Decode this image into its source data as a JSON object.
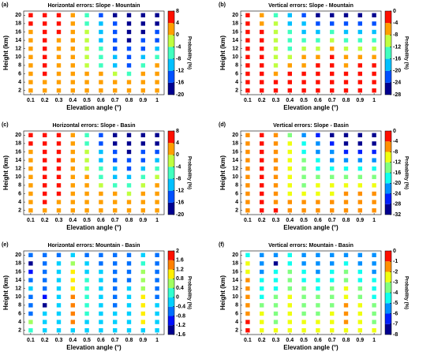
{
  "chart_data": [
    {
      "type": "heatmap-scatter",
      "panel_label": "(a)",
      "title": "Horizontal errors: Slope - Mountain",
      "xlabel": "Elevation angle (°)",
      "ylabel": "Height (km)",
      "clabel": "Probability (%)",
      "x": [
        0.1,
        0.2,
        0.3,
        0.4,
        0.5,
        0.6,
        0.7,
        0.8,
        0.9,
        1
      ],
      "y": [
        2,
        4,
        6,
        8,
        10,
        12,
        14,
        16,
        18,
        20
      ],
      "xlim": [
        0.05,
        1.05
      ],
      "ylim": [
        1,
        21
      ],
      "xticks": [
        0.1,
        0.2,
        0.3,
        0.4,
        0.5,
        0.6,
        0.7,
        0.8,
        0.9,
        1
      ],
      "yticks": [
        2,
        4,
        6,
        8,
        10,
        12,
        14,
        16,
        18,
        20
      ],
      "clim": [
        -20,
        8
      ],
      "cticks": [
        -20,
        -16,
        -12,
        -8,
        -4,
        0,
        4,
        8
      ],
      "colormap": [
        "#00008f",
        "#0050ff",
        "#00c0ff",
        "#40ffbf",
        "#bfff40",
        "#ff9f00",
        "#ff1000"
      ],
      "values": [
        [
          2,
          2,
          2,
          2,
          2,
          2,
          2,
          2,
          2,
          2
        ],
        [
          2,
          2,
          2,
          2,
          2,
          2,
          2,
          2,
          2,
          2
        ],
        [
          2,
          6,
          2,
          2,
          2,
          2,
          -2,
          -6,
          2,
          2
        ],
        [
          2,
          6,
          2,
          2,
          -2,
          -6,
          -10,
          -14,
          -6,
          2
        ],
        [
          2,
          6,
          2,
          2,
          -2,
          -6,
          -10,
          -14,
          -10,
          -6
        ],
        [
          2,
          6,
          2,
          2,
          -2,
          -6,
          -14,
          -14,
          -14,
          -10
        ],
        [
          2,
          6,
          2,
          2,
          -2,
          -10,
          -14,
          -18,
          -14,
          -14
        ],
        [
          2,
          6,
          6,
          2,
          -2,
          -10,
          -14,
          -18,
          -18,
          -14
        ],
        [
          6,
          6,
          6,
          2,
          -6,
          -10,
          -14,
          -18,
          -18,
          -18
        ],
        [
          6,
          6,
          6,
          2,
          -6,
          -14,
          -18,
          -18,
          -18,
          -18
        ]
      ]
    },
    {
      "type": "heatmap-scatter",
      "panel_label": "(b)",
      "title": "Vertical errors: Slope - Mountain",
      "xlabel": "Elevation angle (°)",
      "ylabel": "Height (km)",
      "clabel": "Probability (%)",
      "x": [
        0.1,
        0.2,
        0.3,
        0.4,
        0.5,
        0.6,
        0.7,
        0.8,
        0.9,
        1
      ],
      "y": [
        2,
        4,
        6,
        8,
        10,
        12,
        14,
        16,
        18,
        20
      ],
      "xlim": [
        0.05,
        1.05
      ],
      "ylim": [
        1,
        21
      ],
      "xticks": [
        0.1,
        0.2,
        0.3,
        0.4,
        0.5,
        0.6,
        0.7,
        0.8,
        0.9,
        1
      ],
      "yticks": [
        2,
        4,
        6,
        8,
        10,
        12,
        14,
        16,
        18,
        20
      ],
      "clim": [
        -28,
        0
      ],
      "cticks": [
        -28,
        -24,
        -20,
        -16,
        -12,
        -8,
        -4,
        0
      ],
      "colormap": [
        "#00008f",
        "#0050ff",
        "#00c0ff",
        "#40ffbf",
        "#bfff40",
        "#ff9f00",
        "#ff1000"
      ],
      "values": [
        [
          -2,
          -2,
          -2,
          -2,
          -2,
          -2,
          -2,
          -2,
          -2,
          -2
        ],
        [
          -2,
          -2,
          -2,
          -2,
          -2,
          -2,
          -2,
          -2,
          -2,
          -2
        ],
        [
          -2,
          -2,
          -6,
          -2,
          -2,
          -2,
          -2,
          -2,
          -2,
          -2
        ],
        [
          -2,
          -2,
          -10,
          -6,
          -6,
          -2,
          -2,
          -6,
          -2,
          -2
        ],
        [
          -2,
          -2,
          -10,
          -10,
          -6,
          -6,
          -2,
          -6,
          -6,
          -6
        ],
        [
          -2,
          -2,
          -10,
          -14,
          -10,
          -10,
          -6,
          -10,
          -10,
          -10
        ],
        [
          -2,
          -2,
          -10,
          -14,
          -14,
          -14,
          -10,
          -14,
          -14,
          -14
        ],
        [
          -2,
          -2,
          -10,
          -14,
          -18,
          -18,
          -14,
          -18,
          -18,
          -18
        ],
        [
          -2,
          -6,
          -10,
          -18,
          -18,
          -22,
          -22,
          -22,
          -22,
          -22
        ],
        [
          -2,
          -6,
          -14,
          -18,
          -22,
          -26,
          -26,
          -26,
          -26,
          -26
        ]
      ]
    },
    {
      "type": "heatmap-scatter",
      "panel_label": "(c)",
      "title": "Horizontal errors: Slope - Basin",
      "xlabel": "Elevation angle (°)",
      "ylabel": "Height (km)",
      "clabel": "Probability (%)",
      "x": [
        0.1,
        0.2,
        0.3,
        0.4,
        0.5,
        0.6,
        0.7,
        0.8,
        0.9,
        1
      ],
      "y": [
        2,
        4,
        6,
        8,
        10,
        12,
        14,
        16,
        18,
        20
      ],
      "xlim": [
        0.05,
        1.05
      ],
      "ylim": [
        1,
        21
      ],
      "xticks": [
        0.1,
        0.2,
        0.3,
        0.4,
        0.5,
        0.6,
        0.7,
        0.8,
        0.9,
        1
      ],
      "yticks": [
        2,
        4,
        6,
        8,
        10,
        12,
        14,
        16,
        18,
        20
      ],
      "clim": [
        -20,
        8
      ],
      "cticks": [
        -20,
        -16,
        -12,
        -8,
        -4,
        0,
        4,
        8
      ],
      "colormap": [
        "#00008f",
        "#0050ff",
        "#00c0ff",
        "#40ffbf",
        "#bfff40",
        "#ff9f00",
        "#ff1000"
      ],
      "values": [
        [
          2,
          2,
          2,
          2,
          2,
          2,
          2,
          2,
          2,
          2
        ],
        [
          2,
          6,
          2,
          2,
          2,
          2,
          2,
          2,
          2,
          2
        ],
        [
          2,
          6,
          6,
          2,
          2,
          2,
          2,
          -2,
          2,
          2
        ],
        [
          2,
          6,
          6,
          2,
          2,
          -2,
          -6,
          -6,
          -2,
          2
        ],
        [
          2,
          6,
          6,
          2,
          2,
          -6,
          -10,
          -10,
          -6,
          -2
        ],
        [
          2,
          6,
          6,
          2,
          -2,
          -6,
          -10,
          -14,
          -10,
          -6
        ],
        [
          2,
          6,
          6,
          2,
          -2,
          -10,
          -14,
          -14,
          -14,
          -10
        ],
        [
          2,
          6,
          6,
          2,
          -2,
          -10,
          -14,
          -18,
          -14,
          -14
        ],
        [
          6,
          6,
          6,
          2,
          -6,
          -14,
          -18,
          -18,
          -18,
          -18
        ],
        [
          6,
          6,
          6,
          2,
          -6,
          -14,
          -18,
          -18,
          -18,
          -18
        ]
      ]
    },
    {
      "type": "heatmap-scatter",
      "panel_label": "(d)",
      "title": "Vertical errors: Slope - Basin",
      "xlabel": "Elevation angle (°)",
      "ylabel": "Height (km)",
      "clabel": "Probability (%)",
      "x": [
        0.1,
        0.2,
        0.3,
        0.4,
        0.5,
        0.6,
        0.7,
        0.8,
        0.9,
        1
      ],
      "y": [
        2,
        4,
        6,
        8,
        10,
        12,
        14,
        16,
        18,
        20
      ],
      "xlim": [
        0.05,
        1.05
      ],
      "ylim": [
        1,
        21
      ],
      "xticks": [
        0.1,
        0.2,
        0.3,
        0.4,
        0.5,
        0.6,
        0.7,
        0.8,
        0.9,
        1
      ],
      "yticks": [
        2,
        4,
        6,
        8,
        10,
        12,
        14,
        16,
        18,
        20
      ],
      "clim": [
        -32,
        0
      ],
      "cticks": [
        -32,
        -28,
        -24,
        -20,
        -16,
        -12,
        -8,
        -4,
        0
      ],
      "colormap": [
        "#00008f",
        "#0020ff",
        "#0090ff",
        "#10ffef",
        "#80ff80",
        "#efff10",
        "#ff9000",
        "#ff1000"
      ],
      "values": [
        [
          -6,
          -2,
          -2,
          -6,
          -6,
          -6,
          -6,
          -6,
          -6,
          -6
        ],
        [
          -6,
          -2,
          -6,
          -6,
          -6,
          -6,
          -6,
          -6,
          -6,
          -6
        ],
        [
          -6,
          -2,
          -6,
          -10,
          -10,
          -10,
          -10,
          -6,
          -6,
          -6
        ],
        [
          -6,
          -2,
          -6,
          -10,
          -14,
          -10,
          -10,
          -10,
          -10,
          -10
        ],
        [
          -6,
          -2,
          -6,
          -10,
          -14,
          -14,
          -14,
          -14,
          -14,
          -14
        ],
        [
          -6,
          -2,
          -6,
          -10,
          -14,
          -18,
          -18,
          -18,
          -18,
          -18
        ],
        [
          -6,
          -2,
          -6,
          -10,
          -14,
          -18,
          -22,
          -22,
          -22,
          -22
        ],
        [
          -6,
          -2,
          -6,
          -10,
          -18,
          -22,
          -22,
          -26,
          -26,
          -26
        ],
        [
          -6,
          -2,
          -6,
          -10,
          -18,
          -22,
          -26,
          -30,
          -30,
          -30
        ],
        [
          -6,
          -2,
          -6,
          -14,
          -22,
          -26,
          -30,
          -30,
          -30,
          -30
        ]
      ]
    },
    {
      "type": "heatmap-scatter",
      "panel_label": "(e)",
      "title": "Horizontal errors: Mountain - Basin",
      "xlabel": "Elevation angle (°)",
      "ylabel": "Height (km)",
      "clabel": "Probability (%)",
      "x": [
        0.1,
        0.2,
        0.3,
        0.4,
        0.5,
        0.6,
        0.7,
        0.8,
        0.9,
        1
      ],
      "y": [
        2,
        4,
        6,
        8,
        10,
        12,
        14,
        16,
        18,
        20
      ],
      "xlim": [
        0.05,
        1.05
      ],
      "ylim": [
        1,
        21
      ],
      "xticks": [
        0.1,
        0.2,
        0.3,
        0.4,
        0.5,
        0.6,
        0.7,
        0.8,
        0.9,
        1
      ],
      "yticks": [
        2,
        4,
        6,
        8,
        10,
        12,
        14,
        16,
        18,
        20
      ],
      "clim": [
        -1.6,
        2
      ],
      "cticks": [
        -1.6,
        -1.2,
        -0.8,
        -0.4,
        0,
        0.4,
        0.8,
        1.2,
        1.6,
        2
      ],
      "colormap": [
        "#00008f",
        "#0010ff",
        "#0070ff",
        "#00d0ff",
        "#30ffcf",
        "#a0ff60",
        "#ffef00",
        "#ff8000",
        "#ff1000"
      ],
      "values": [
        [
          0.2,
          -0.2,
          -0.2,
          -0.2,
          -0.2,
          -0.2,
          -0.2,
          -0.2,
          -0.2,
          -0.2
        ],
        [
          0.6,
          -0.2,
          -0.2,
          1.4,
          -0.2,
          -0.2,
          -0.2,
          -0.2,
          1.0,
          -0.2
        ],
        [
          -0.6,
          -0.2,
          -0.2,
          1.4,
          0.2,
          -0.2,
          -0.2,
          -0.2,
          1.0,
          -0.2
        ],
        [
          -0.6,
          -1.4,
          -0.2,
          1.4,
          0.2,
          -0.2,
          -0.6,
          -0.2,
          1.0,
          -0.2
        ],
        [
          -0.6,
          -1.0,
          -0.2,
          1.4,
          0.2,
          -0.2,
          -0.6,
          -0.2,
          1.0,
          -0.6
        ],
        [
          -0.2,
          -0.6,
          -0.2,
          1.0,
          0.2,
          -0.2,
          -0.6,
          -0.2,
          0.6,
          -0.6
        ],
        [
          -0.6,
          -0.6,
          -0.2,
          1.0,
          0.2,
          -0.2,
          -0.6,
          -0.6,
          0.6,
          -0.6
        ],
        [
          -1.0,
          -0.6,
          -0.2,
          1.0,
          -0.2,
          -0.2,
          -0.6,
          -0.6,
          0.6,
          -0.6
        ],
        [
          -1.4,
          -0.6,
          -0.2,
          0.6,
          -0.2,
          -0.6,
          -0.6,
          -0.6,
          0.2,
          -0.6
        ],
        [
          -0.6,
          -0.6,
          -0.6,
          -0.2,
          -0.6,
          -0.6,
          -0.6,
          -0.6,
          -0.2,
          -0.6
        ]
      ]
    },
    {
      "type": "heatmap-scatter",
      "panel_label": "(f)",
      "title": "Vertical errors: Mountain - Basin",
      "xlabel": "Elevation angle (°)",
      "ylabel": "Height (km)",
      "clabel": "Probability (%)",
      "x": [
        0.1,
        0.2,
        0.3,
        0.4,
        0.5,
        0.6,
        0.7,
        0.8,
        0.9,
        1
      ],
      "y": [
        2,
        4,
        6,
        8,
        10,
        12,
        14,
        16,
        18,
        20
      ],
      "xlim": [
        0.05,
        1.05
      ],
      "ylim": [
        1,
        21
      ],
      "xticks": [
        0.1,
        0.2,
        0.3,
        0.4,
        0.5,
        0.6,
        0.7,
        0.8,
        0.9,
        1
      ],
      "yticks": [
        2,
        4,
        6,
        8,
        10,
        12,
        14,
        16,
        18,
        20
      ],
      "clim": [
        -8,
        0
      ],
      "cticks": [
        -8,
        -7,
        -6,
        -5,
        -4,
        -3,
        -2,
        -1,
        0
      ],
      "colormap": [
        "#00008f",
        "#0020ff",
        "#0090ff",
        "#10ffef",
        "#80ff80",
        "#efff10",
        "#ff9000",
        "#ff1000"
      ],
      "values": [
        [
          -0.5,
          -2.5,
          -2.5,
          -2.5,
          -2.5,
          -2.5,
          -2.5,
          -2.5,
          -2.5,
          -2.5
        ],
        [
          -0.5,
          -2.5,
          -3.5,
          -2.5,
          -2.5,
          -2.5,
          -2.5,
          -1.5,
          -2.5,
          -3.5
        ],
        [
          -1.5,
          -2.5,
          -3.5,
          -2.5,
          -3.5,
          -3.5,
          -2.5,
          -1.5,
          -2.5,
          -3.5
        ],
        [
          -1.5,
          -3.5,
          -3.5,
          -2.5,
          -3.5,
          -3.5,
          -3.5,
          -1.5,
          -2.5,
          -3.5
        ],
        [
          -1.5,
          -4.5,
          -3.5,
          -2.5,
          -3.5,
          -3.5,
          -3.5,
          -2.5,
          -3.5,
          -4.5
        ],
        [
          -1.5,
          -4.5,
          -4.5,
          -3.5,
          -3.5,
          -4.5,
          -3.5,
          -2.5,
          -3.5,
          -4.5
        ],
        [
          -1.5,
          -4.5,
          -4.5,
          -3.5,
          -4.5,
          -4.5,
          -4.5,
          -3.5,
          -4.5,
          -4.5
        ],
        [
          -2.5,
          -5.5,
          -4.5,
          -3.5,
          -4.5,
          -5.5,
          -4.5,
          -3.5,
          -4.5,
          -5.5
        ],
        [
          -2.5,
          -5.5,
          -7.5,
          -4.5,
          -5.5,
          -5.5,
          -5.5,
          -4.5,
          -5.5,
          -5.5
        ],
        [
          -4.5,
          -5.5,
          -5.5,
          -4.5,
          -5.5,
          -5.5,
          -5.5,
          -5.5,
          -5.5,
          -5.5
        ]
      ]
    }
  ]
}
